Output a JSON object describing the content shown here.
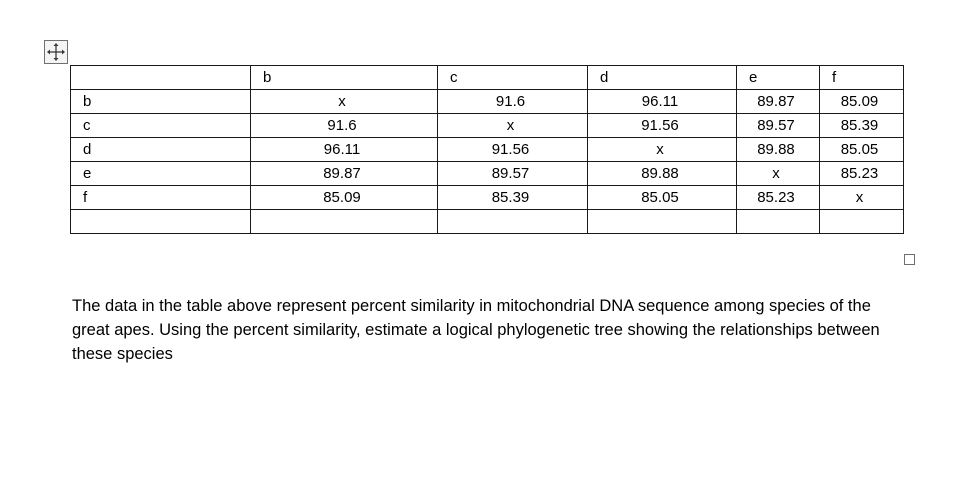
{
  "table": {
    "header": [
      "",
      "b",
      "c",
      "d",
      "e",
      "f"
    ],
    "rows": [
      [
        "b",
        "x",
        "91.6",
        "96.11",
        "89.87",
        "85.09"
      ],
      [
        "c",
        "91.6",
        "x",
        "91.56",
        "89.57",
        "85.39"
      ],
      [
        "d",
        "96.11",
        "91.56",
        "x",
        "89.88",
        "85.05"
      ],
      [
        "e",
        "89.87",
        "89.57",
        "89.88",
        "x",
        "85.23"
      ],
      [
        "f",
        "85.09",
        "85.39",
        "85.05",
        "85.23",
        "x"
      ],
      [
        "",
        "",
        "",
        "",
        "",
        ""
      ]
    ]
  },
  "paragraph": {
    "text": "The data in the table above represent percent similarity in mitochondrial DNA sequence among species of the great apes. Using the percent similarity, estimate a logical phylogenetic tree showing the relationships between these species"
  },
  "icons": {
    "move_handle": "move-cross-icon",
    "resize_handle": "resize-square-icon"
  }
}
